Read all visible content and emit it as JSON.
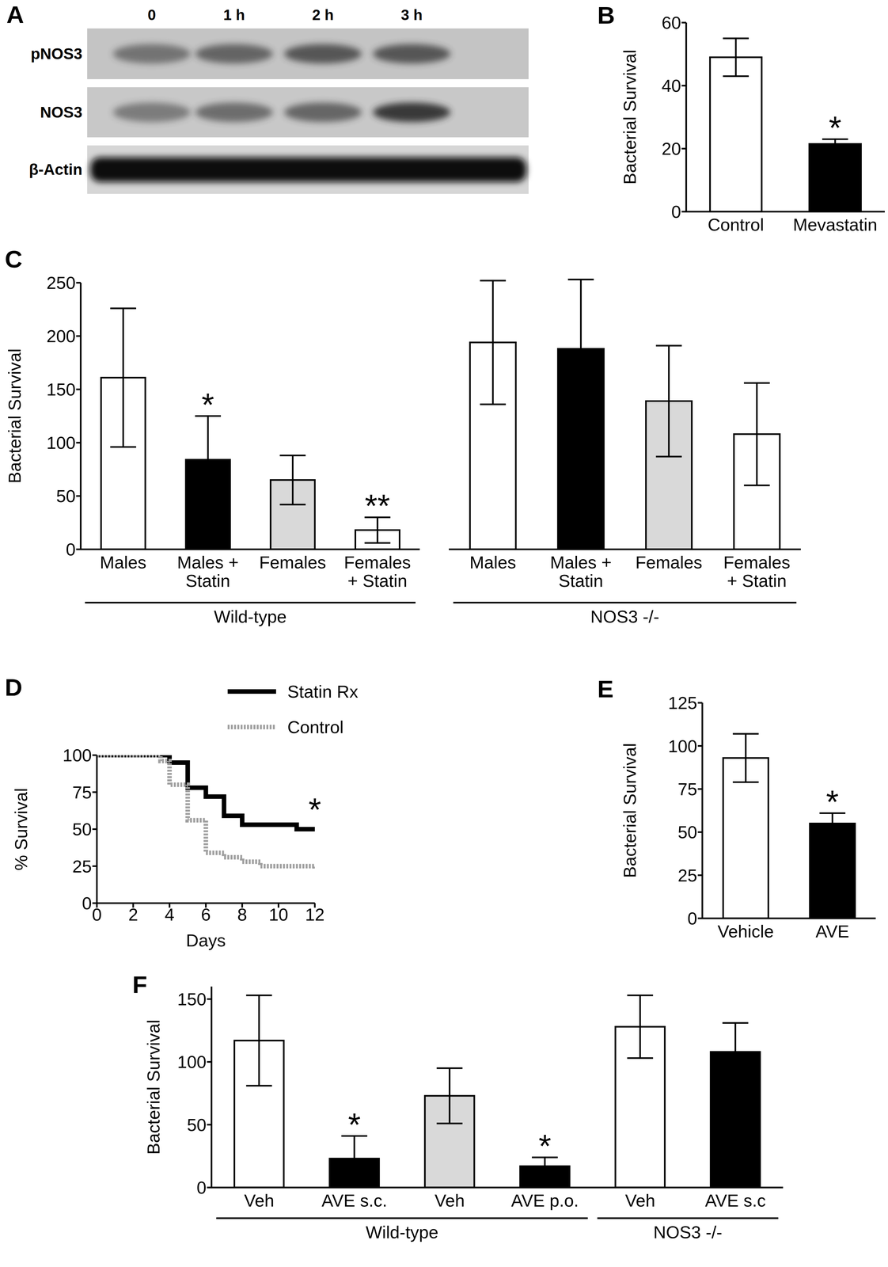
{
  "blot": {
    "title": "A",
    "lanes": [
      "0",
      "1 h",
      "2 h",
      "3 h"
    ],
    "rows": [
      "pNOS3",
      "NOS3",
      "β-Actin"
    ]
  },
  "chart_data": [
    {
      "type": "bar",
      "title": "B",
      "categories": [
        "Control",
        "Mevastatin"
      ],
      "values": [
        49,
        21.5
      ],
      "errors": [
        6,
        1.5
      ],
      "colors": [
        "#ffffff",
        "#000000"
      ],
      "ylim": [
        0,
        60
      ],
      "yticks": [
        0,
        20,
        40,
        60
      ],
      "ylabel": "Bacterial Survival",
      "annotations": [
        {
          "index": 1,
          "text": "*"
        }
      ]
    },
    {
      "type": "bar",
      "title": "C",
      "categories": [
        "Males",
        "Males +\nStatin",
        "Females",
        "Females\n+ Statin"
      ],
      "values": [
        161,
        84,
        65,
        18
      ],
      "errors": [
        65,
        41,
        23,
        12
      ],
      "colors": [
        "#ffffff",
        "#000000",
        "#d9d9d9",
        "#ffffff"
      ],
      "ylim": [
        0,
        250
      ],
      "yticks": [
        0,
        50,
        100,
        150,
        200,
        250
      ],
      "ylabel": "Bacterial Survival",
      "annotations": [
        {
          "index": 1,
          "text": "*"
        },
        {
          "index": 3,
          "text": "**"
        }
      ],
      "groups": [
        {
          "label": "Wild-type",
          "start": 0,
          "end": 3
        }
      ]
    },
    {
      "type": "bar",
      "categories": [
        "Males",
        "Males +\nStatin",
        "Females",
        "Females\n+ Statin"
      ],
      "values": [
        194,
        188,
        139,
        108
      ],
      "errors": [
        58,
        65,
        52,
        48
      ],
      "colors": [
        "#ffffff",
        "#000000",
        "#d9d9d9",
        "#ffffff"
      ],
      "ylim": [
        0,
        250
      ],
      "tick_labels": "x",
      "groups": [
        {
          "label": "NOS3 -/-",
          "start": 0,
          "end": 3
        }
      ]
    },
    {
      "type": "line",
      "title": "D",
      "xlim": [
        0,
        12
      ],
      "xticks": [
        0,
        2,
        4,
        6,
        8,
        10,
        12
      ],
      "ylim": [
        0,
        100
      ],
      "yticks": [
        0,
        25,
        50,
        75,
        100
      ],
      "xlabel": "Days",
      "ylabel": "% Survival",
      "legend": "top right",
      "series": [
        {
          "name": "Statin Rx",
          "color": "#000000",
          "line_style": "solid",
          "x": [
            0,
            4,
            5,
            6,
            7,
            8,
            11,
            12
          ],
          "values": [
            100,
            95,
            78,
            72,
            59,
            53,
            50,
            50
          ]
        },
        {
          "name": "Control",
          "color": "#a0a0a0",
          "line_style": "dotted",
          "x": [
            0,
            3.5,
            4,
            5,
            6,
            7,
            8,
            9,
            12
          ],
          "values": [
            100,
            96,
            80,
            56,
            34,
            31,
            28,
            25,
            23
          ]
        }
      ],
      "annotations": [
        {
          "x": 12,
          "y": 50,
          "text": "*"
        }
      ]
    },
    {
      "type": "bar",
      "title": "E",
      "categories": [
        "Vehicle",
        "AVE"
      ],
      "values": [
        93,
        55
      ],
      "errors": [
        14,
        6
      ],
      "colors": [
        "#ffffff",
        "#000000"
      ],
      "ylim": [
        0,
        125
      ],
      "yticks": [
        0,
        25,
        50,
        75,
        100,
        125
      ],
      "ylabel": "Bacterial Survival",
      "annotations": [
        {
          "index": 1,
          "text": "*"
        }
      ]
    },
    {
      "type": "bar",
      "title": "F",
      "categories": [
        "Veh",
        "AVE s.c.",
        "Veh",
        "AVE p.o.",
        "Veh",
        "AVE s.c"
      ],
      "values": [
        117,
        23,
        73,
        17,
        128,
        108
      ],
      "errors": [
        36,
        18,
        22,
        7,
        25,
        23
      ],
      "colors": [
        "#ffffff",
        "#000000",
        "#d9d9d9",
        "#000000",
        "#ffffff",
        "#000000"
      ],
      "ylim": [
        0,
        160
      ],
      "yticks": [
        0,
        50,
        100,
        150
      ],
      "ylabel": "Bacterial Survival",
      "annotations": [
        {
          "index": 1,
          "text": "*"
        },
        {
          "index": 3,
          "text": "*"
        }
      ],
      "groups": [
        {
          "label": "Wild-type",
          "start": 0,
          "end": 3
        },
        {
          "label": "NOS3 -/-",
          "start": 4,
          "end": 5
        }
      ]
    }
  ]
}
